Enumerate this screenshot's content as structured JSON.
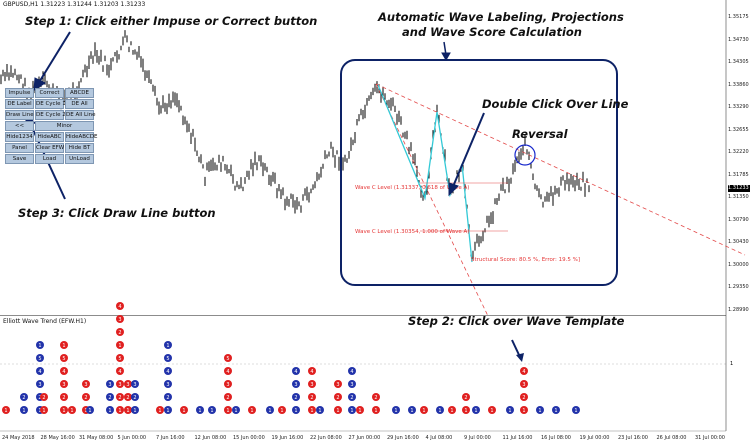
{
  "window": {
    "symbol_info": "GBPUSD,H1  1.31223 1.31244 1.31203 1.31233"
  },
  "indicator": {
    "title": "Elliott Wave Trend (EFW.H1)",
    "level_label": "1"
  },
  "panel": {
    "buttons": [
      "Impulse",
      "Correct",
      "ABCDE",
      "DE Label",
      "DE Cycle 1",
      "DE All",
      "Draw Line",
      "DE Cycle 2",
      "DE All Line",
      "<<",
      "Minor",
      "Hide1234",
      "HideABC",
      "HideABCDE",
      "Panel",
      "Clear EFW",
      "Hide BT",
      "Save",
      "Load",
      "UnLoad"
    ]
  },
  "annotations": {
    "step1": "Step 1: Click either Impuse or Correct button",
    "step2": "Step 2: Click over Wave Template",
    "step3": "Step 3: Click Draw Line button",
    "headline_line1": "Automatic Wave Labeling, Projections",
    "headline_line2": "and Wave Score Calculation",
    "double_click": "Double Click Over Line",
    "reversal": "Reversal"
  },
  "chart_texts": {
    "wave_c1": "Wave C Level (1.31337, 0.618 of Wave A)",
    "wave_c2": "Wave C Level (1.30354, 1.000 of Wave A)",
    "score": "Structural Score: 80.5 %, Error: 19.5 %]"
  },
  "price_axis": [
    "1.35175",
    "1.34730",
    "1.34305",
    "1.33860",
    "1.33290",
    "1.32655",
    "1.32220",
    "1.31785",
    "1.31350",
    "1.30790",
    "1.30430",
    "1.30000",
    "1.29350",
    "1.28990"
  ],
  "current_price": "1.31233",
  "time_axis": [
    "24 May 2018",
    "28 May 16:00",
    "31 May 08:00",
    "5 Jun 00:00",
    "7 Jun 16:00",
    "12 Jun 08:00",
    "15 Jun 00:00",
    "19 Jun 16:00",
    "22 Jun 08:00",
    "27 Jun 00:00",
    "29 Jun 16:00",
    "4 Jul 08:00",
    "9 Jul 00:00",
    "11 Jul 16:00",
    "16 Jul 08:00",
    "19 Jul 00:00",
    "23 Jul 16:00",
    "26 Jul 08:00",
    "31 Jul 00:00"
  ],
  "colors": {
    "up": "#2233aa",
    "down": "#e02020",
    "candle": "#000000",
    "channel": "#e34b4b",
    "wave": "#33c9d6",
    "frame": "#0d2266"
  }
}
